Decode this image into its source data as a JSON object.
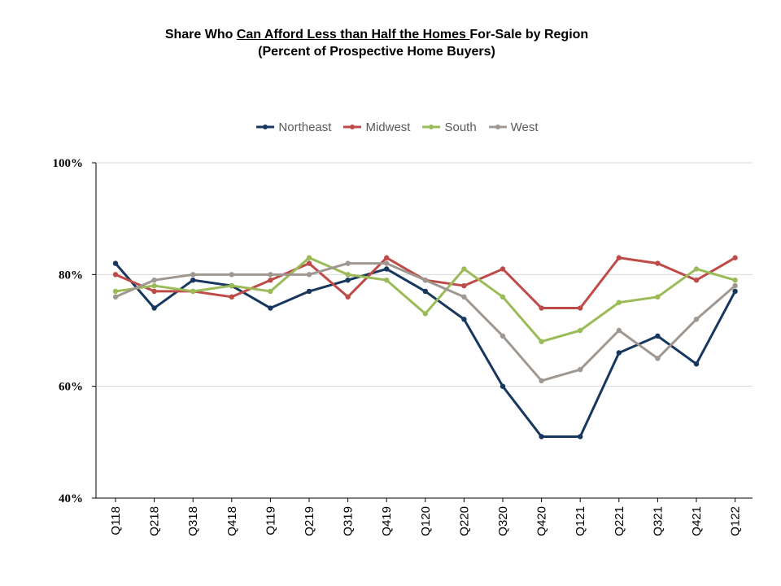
{
  "chart_data": {
    "type": "line",
    "title_parts": [
      {
        "text": "Share Who ",
        "underline": false
      },
      {
        "text": "Can Afford Less than Half the Homes ",
        "underline": true
      },
      {
        "text": "For-Sale by Region",
        "underline": false
      }
    ],
    "subtitle": "(Percent of Prospective Home Buyers)",
    "categories": [
      "Q118",
      "Q218",
      "Q318",
      "Q418",
      "Q119",
      "Q219",
      "Q319",
      "Q419",
      "Q120",
      "Q220",
      "Q320",
      "Q420",
      "Q121",
      "Q221",
      "Q321",
      "Q421",
      "Q122"
    ],
    "ylim": [
      40,
      100
    ],
    "yticks": [
      40,
      60,
      80,
      100
    ],
    "ytick_labels": [
      "40%",
      "60%",
      "80%",
      "100%"
    ],
    "grid": true,
    "legend_position": "top",
    "series": [
      {
        "name": "Northeast",
        "color": "#17375e",
        "values": [
          82,
          74,
          79,
          78,
          74,
          77,
          79,
          81,
          77,
          72,
          60,
          51,
          51,
          66,
          69,
          64,
          77
        ]
      },
      {
        "name": "Midwest",
        "color": "#be4b48",
        "values": [
          80,
          77,
          77,
          76,
          79,
          82,
          76,
          83,
          79,
          78,
          81,
          74,
          74,
          83,
          82,
          79,
          83
        ]
      },
      {
        "name": "South",
        "color": "#9bbb59",
        "values": [
          77,
          78,
          77,
          78,
          77,
          83,
          80,
          79,
          73,
          81,
          76,
          68,
          70,
          75,
          76,
          81,
          79
        ]
      },
      {
        "name": "West",
        "color": "#a09890",
        "values": [
          76,
          79,
          80,
          80,
          80,
          80,
          82,
          82,
          79,
          76,
          69,
          61,
          63,
          70,
          65,
          72,
          78
        ]
      }
    ]
  }
}
